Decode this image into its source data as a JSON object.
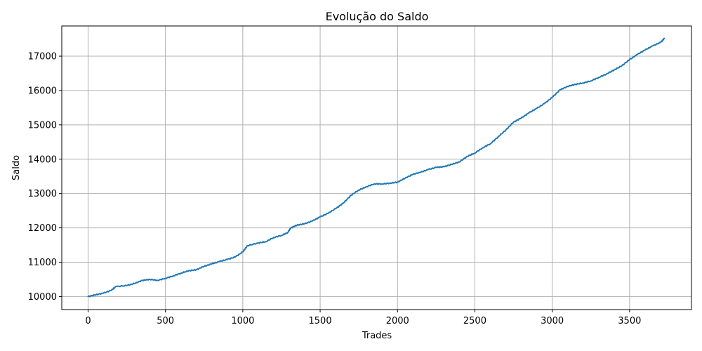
{
  "chart_data": {
    "type": "line",
    "title": "Evolução do Saldo",
    "xlabel": "Trades",
    "ylabel": "Saldo",
    "xlim": [
      -170,
      3900
    ],
    "ylim": [
      9620,
      17880
    ],
    "xticks": [
      0,
      500,
      1000,
      1500,
      2000,
      2500,
      3000,
      3500
    ],
    "yticks": [
      10000,
      11000,
      12000,
      13000,
      14000,
      15000,
      16000,
      17000
    ],
    "grid": true,
    "series": [
      {
        "name": "Saldo",
        "color": "#1f77b4",
        "x": [
          0,
          50,
          100,
          150,
          180,
          250,
          300,
          350,
          400,
          450,
          500,
          550,
          600,
          650,
          700,
          750,
          800,
          850,
          900,
          950,
          1000,
          1030,
          1100,
          1150,
          1200,
          1250,
          1290,
          1310,
          1350,
          1400,
          1450,
          1500,
          1550,
          1600,
          1650,
          1700,
          1750,
          1800,
          1850,
          1900,
          1950,
          2000,
          2050,
          2100,
          2150,
          2200,
          2250,
          2300,
          2350,
          2400,
          2450,
          2500,
          2550,
          2600,
          2650,
          2700,
          2750,
          2800,
          2850,
          2900,
          2950,
          3000,
          3050,
          3100,
          3150,
          3200,
          3250,
          3300,
          3350,
          3400,
          3450,
          3500,
          3550,
          3600,
          3650,
          3700,
          3725
        ],
        "values": [
          10000,
          10050,
          10100,
          10180,
          10290,
          10320,
          10380,
          10470,
          10500,
          10470,
          10530,
          10600,
          10680,
          10750,
          10780,
          10880,
          10950,
          11020,
          11080,
          11150,
          11300,
          11480,
          11560,
          11600,
          11720,
          11780,
          11860,
          12000,
          12080,
          12120,
          12200,
          12320,
          12420,
          12560,
          12720,
          12950,
          13100,
          13200,
          13280,
          13280,
          13300,
          13330,
          13450,
          13560,
          13620,
          13700,
          13760,
          13780,
          13850,
          13920,
          14080,
          14180,
          14330,
          14450,
          14650,
          14850,
          15080,
          15200,
          15350,
          15480,
          15620,
          15800,
          16020,
          16120,
          16180,
          16220,
          16280,
          16380,
          16480,
          16600,
          16720,
          16900,
          17050,
          17180,
          17300,
          17400,
          17520
        ]
      }
    ]
  }
}
